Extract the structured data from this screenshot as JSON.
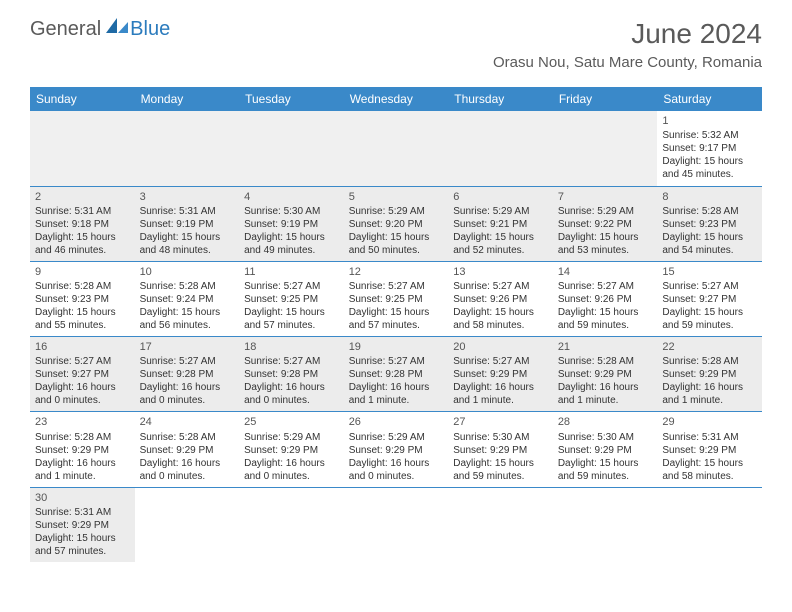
{
  "logo": {
    "part1": "General",
    "part2": "Blue"
  },
  "title": "June 2024",
  "location": "Orasu Nou, Satu Mare County, Romania",
  "colors": {
    "header_bg": "#3a89c9",
    "header_text": "#ffffff",
    "body_text": "#333333",
    "muted_text": "#5a5a5a",
    "shaded_bg": "#ececec",
    "border": "#3a89c9",
    "logo_gray": "#5a5a5a",
    "logo_blue": "#2b7bbd"
  },
  "day_names": [
    "Sunday",
    "Monday",
    "Tuesday",
    "Wednesday",
    "Thursday",
    "Friday",
    "Saturday"
  ],
  "weeks": [
    [
      null,
      null,
      null,
      null,
      null,
      null,
      {
        "n": "1",
        "sr": "Sunrise: 5:32 AM",
        "ss": "Sunset: 9:17 PM",
        "d1": "Daylight: 15 hours",
        "d2": "and 45 minutes."
      }
    ],
    [
      {
        "n": "2",
        "sr": "Sunrise: 5:31 AM",
        "ss": "Sunset: 9:18 PM",
        "d1": "Daylight: 15 hours",
        "d2": "and 46 minutes."
      },
      {
        "n": "3",
        "sr": "Sunrise: 5:31 AM",
        "ss": "Sunset: 9:19 PM",
        "d1": "Daylight: 15 hours",
        "d2": "and 48 minutes."
      },
      {
        "n": "4",
        "sr": "Sunrise: 5:30 AM",
        "ss": "Sunset: 9:19 PM",
        "d1": "Daylight: 15 hours",
        "d2": "and 49 minutes."
      },
      {
        "n": "5",
        "sr": "Sunrise: 5:29 AM",
        "ss": "Sunset: 9:20 PM",
        "d1": "Daylight: 15 hours",
        "d2": "and 50 minutes."
      },
      {
        "n": "6",
        "sr": "Sunrise: 5:29 AM",
        "ss": "Sunset: 9:21 PM",
        "d1": "Daylight: 15 hours",
        "d2": "and 52 minutes."
      },
      {
        "n": "7",
        "sr": "Sunrise: 5:29 AM",
        "ss": "Sunset: 9:22 PM",
        "d1": "Daylight: 15 hours",
        "d2": "and 53 minutes."
      },
      {
        "n": "8",
        "sr": "Sunrise: 5:28 AM",
        "ss": "Sunset: 9:23 PM",
        "d1": "Daylight: 15 hours",
        "d2": "and 54 minutes."
      }
    ],
    [
      {
        "n": "9",
        "sr": "Sunrise: 5:28 AM",
        "ss": "Sunset: 9:23 PM",
        "d1": "Daylight: 15 hours",
        "d2": "and 55 minutes."
      },
      {
        "n": "10",
        "sr": "Sunrise: 5:28 AM",
        "ss": "Sunset: 9:24 PM",
        "d1": "Daylight: 15 hours",
        "d2": "and 56 minutes."
      },
      {
        "n": "11",
        "sr": "Sunrise: 5:27 AM",
        "ss": "Sunset: 9:25 PM",
        "d1": "Daylight: 15 hours",
        "d2": "and 57 minutes."
      },
      {
        "n": "12",
        "sr": "Sunrise: 5:27 AM",
        "ss": "Sunset: 9:25 PM",
        "d1": "Daylight: 15 hours",
        "d2": "and 57 minutes."
      },
      {
        "n": "13",
        "sr": "Sunrise: 5:27 AM",
        "ss": "Sunset: 9:26 PM",
        "d1": "Daylight: 15 hours",
        "d2": "and 58 minutes."
      },
      {
        "n": "14",
        "sr": "Sunrise: 5:27 AM",
        "ss": "Sunset: 9:26 PM",
        "d1": "Daylight: 15 hours",
        "d2": "and 59 minutes."
      },
      {
        "n": "15",
        "sr": "Sunrise: 5:27 AM",
        "ss": "Sunset: 9:27 PM",
        "d1": "Daylight: 15 hours",
        "d2": "and 59 minutes."
      }
    ],
    [
      {
        "n": "16",
        "sr": "Sunrise: 5:27 AM",
        "ss": "Sunset: 9:27 PM",
        "d1": "Daylight: 16 hours",
        "d2": "and 0 minutes."
      },
      {
        "n": "17",
        "sr": "Sunrise: 5:27 AM",
        "ss": "Sunset: 9:28 PM",
        "d1": "Daylight: 16 hours",
        "d2": "and 0 minutes."
      },
      {
        "n": "18",
        "sr": "Sunrise: 5:27 AM",
        "ss": "Sunset: 9:28 PM",
        "d1": "Daylight: 16 hours",
        "d2": "and 0 minutes."
      },
      {
        "n": "19",
        "sr": "Sunrise: 5:27 AM",
        "ss": "Sunset: 9:28 PM",
        "d1": "Daylight: 16 hours",
        "d2": "and 1 minute."
      },
      {
        "n": "20",
        "sr": "Sunrise: 5:27 AM",
        "ss": "Sunset: 9:29 PM",
        "d1": "Daylight: 16 hours",
        "d2": "and 1 minute."
      },
      {
        "n": "21",
        "sr": "Sunrise: 5:28 AM",
        "ss": "Sunset: 9:29 PM",
        "d1": "Daylight: 16 hours",
        "d2": "and 1 minute."
      },
      {
        "n": "22",
        "sr": "Sunrise: 5:28 AM",
        "ss": "Sunset: 9:29 PM",
        "d1": "Daylight: 16 hours",
        "d2": "and 1 minute."
      }
    ],
    [
      {
        "n": "23",
        "sr": "Sunrise: 5:28 AM",
        "ss": "Sunset: 9:29 PM",
        "d1": "Daylight: 16 hours",
        "d2": "and 1 minute."
      },
      {
        "n": "24",
        "sr": "Sunrise: 5:28 AM",
        "ss": "Sunset: 9:29 PM",
        "d1": "Daylight: 16 hours",
        "d2": "and 0 minutes."
      },
      {
        "n": "25",
        "sr": "Sunrise: 5:29 AM",
        "ss": "Sunset: 9:29 PM",
        "d1": "Daylight: 16 hours",
        "d2": "and 0 minutes."
      },
      {
        "n": "26",
        "sr": "Sunrise: 5:29 AM",
        "ss": "Sunset: 9:29 PM",
        "d1": "Daylight: 16 hours",
        "d2": "and 0 minutes."
      },
      {
        "n": "27",
        "sr": "Sunrise: 5:30 AM",
        "ss": "Sunset: 9:29 PM",
        "d1": "Daylight: 15 hours",
        "d2": "and 59 minutes."
      },
      {
        "n": "28",
        "sr": "Sunrise: 5:30 AM",
        "ss": "Sunset: 9:29 PM",
        "d1": "Daylight: 15 hours",
        "d2": "and 59 minutes."
      },
      {
        "n": "29",
        "sr": "Sunrise: 5:31 AM",
        "ss": "Sunset: 9:29 PM",
        "d1": "Daylight: 15 hours",
        "d2": "and 58 minutes."
      }
    ],
    [
      {
        "n": "30",
        "sr": "Sunrise: 5:31 AM",
        "ss": "Sunset: 9:29 PM",
        "d1": "Daylight: 15 hours",
        "d2": "and 57 minutes."
      },
      null,
      null,
      null,
      null,
      null,
      null
    ]
  ]
}
